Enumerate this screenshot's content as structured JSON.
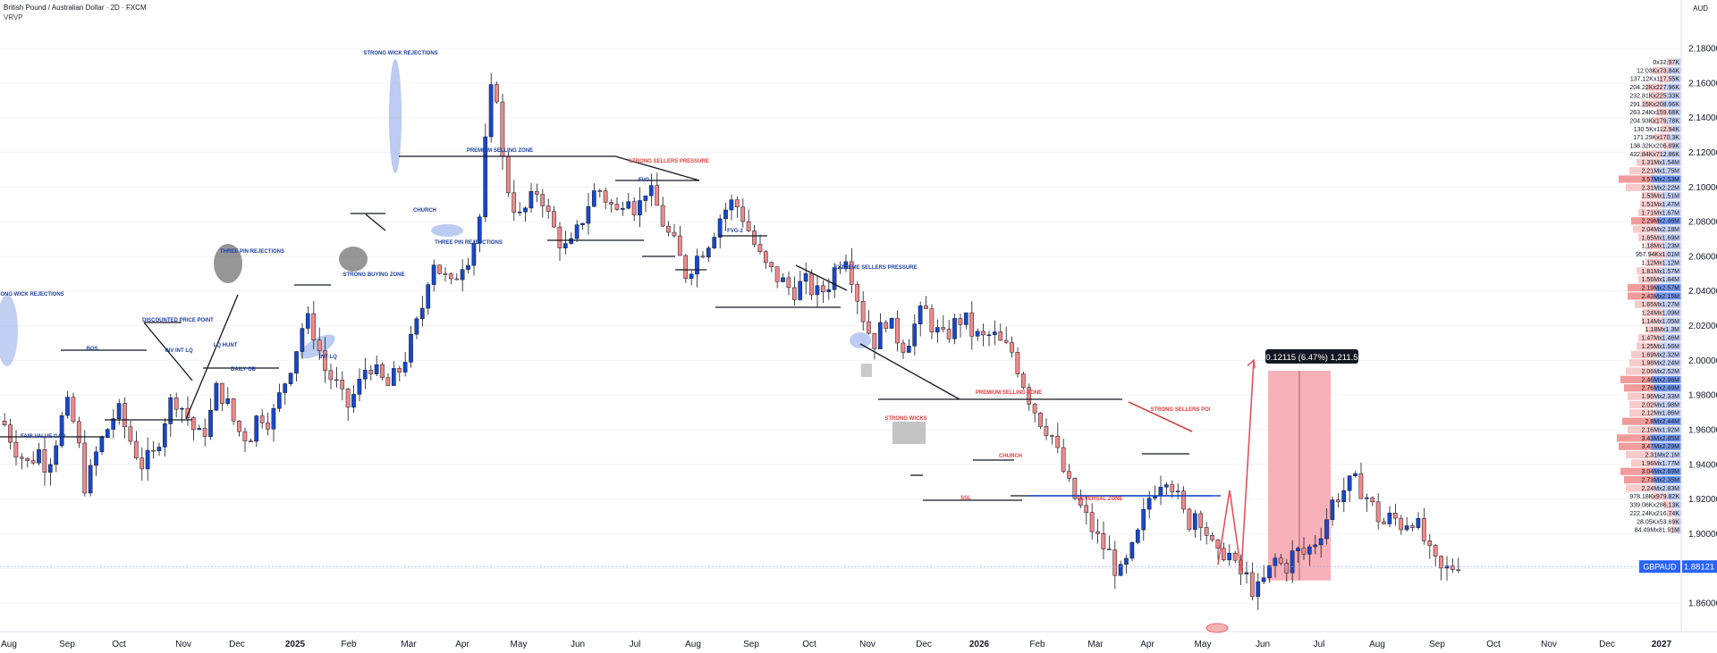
{
  "header": {
    "title": "British Pound / Australian Dollar · 2D · FXCM",
    "indicator": "VRVP",
    "currency": "AUD"
  },
  "price_badge": {
    "symbol": "GBPAUD",
    "price": "1.88121"
  },
  "measure_label": "0.12115 (6.47%) 1,211.5",
  "chart_data": {
    "type": "candlestick",
    "symbol": "GBPAUD",
    "timeframe": "2D",
    "ylim": [
      1.845,
      2.195
    ],
    "y_ticks": [
      "2.18000",
      "2.16000",
      "2.14000",
      "2.12000",
      "2.10000",
      "2.08000",
      "2.06000",
      "2.04000",
      "2.02000",
      "2.00000",
      "1.98000",
      "1.96000",
      "1.94000",
      "1.92000",
      "1.90000",
      "1.88000",
      "1.86000"
    ],
    "x_ticks": [
      "Aug",
      "Sep",
      "Oct",
      "Nov",
      "Dec",
      "2025",
      "Feb",
      "Mar",
      "Apr",
      "May",
      "Jun",
      "Jul",
      "Aug",
      "Sep",
      "Oct",
      "Nov",
      "Dec",
      "2026",
      "Feb",
      "Mar",
      "Apr",
      "May",
      "Jun",
      "Jul",
      "Aug",
      "Sep",
      "Oct",
      "Nov",
      "Dec",
      "2027"
    ],
    "bold_x_ticks": [
      "2025",
      "2026",
      "2027"
    ],
    "price_path": [
      [
        0,
        1.965
      ],
      [
        5,
        1.95
      ],
      [
        10,
        1.94
      ],
      [
        15,
        1.948
      ],
      [
        18,
        1.938
      ],
      [
        22,
        1.955
      ],
      [
        26,
        1.975
      ],
      [
        30,
        1.96
      ],
      [
        34,
        1.925
      ],
      [
        38,
        1.945
      ],
      [
        42,
        1.958
      ],
      [
        47,
        1.972
      ],
      [
        52,
        1.955
      ],
      [
        57,
        1.94
      ],
      [
        62,
        1.945
      ],
      [
        66,
        1.965
      ],
      [
        70,
        1.98
      ],
      [
        75,
        1.97
      ],
      [
        80,
        1.955
      ],
      [
        84,
        1.962
      ],
      [
        88,
        1.985
      ],
      [
        92,
        1.975
      ],
      [
        96,
        1.96
      ],
      [
        101,
        1.955
      ],
      [
        105,
        1.97
      ],
      [
        110,
        1.965
      ],
      [
        115,
        1.985
      ],
      [
        120,
        2.005
      ],
      [
        124,
        2.025
      ],
      [
        128,
        2.015
      ],
      [
        132,
        1.995
      ],
      [
        137,
        1.985
      ],
      [
        141,
        1.972
      ],
      [
        146,
        1.985
      ],
      [
        150,
        2.0
      ],
      [
        154,
        1.99
      ],
      [
        158,
        1.985
      ],
      [
        163,
        1.995
      ],
      [
        168,
        2.012
      ],
      [
        172,
        2.03
      ],
      [
        176,
        2.06
      ],
      [
        180,
        2.05
      ],
      [
        184,
        2.042
      ],
      [
        188,
        2.056
      ],
      [
        192,
        2.062
      ],
      [
        196,
        2.085
      ],
      [
        199,
        2.145
      ],
      [
        202,
        2.165
      ],
      [
        205,
        2.115
      ],
      [
        208,
        2.095
      ],
      [
        212,
        2.082
      ],
      [
        216,
        2.09
      ],
      [
        220,
        2.1
      ],
      [
        224,
        2.082
      ],
      [
        228,
        2.07
      ],
      [
        232,
        2.062
      ],
      [
        236,
        2.075
      ],
      [
        240,
        2.09
      ],
      [
        244,
        2.1
      ],
      [
        248,
        2.092
      ],
      [
        252,
        2.085
      ],
      [
        256,
        2.1
      ],
      [
        260,
        2.085
      ],
      [
        264,
        2.1
      ],
      [
        268,
        2.09
      ],
      [
        272,
        2.075
      ],
      [
        276,
        2.065
      ],
      [
        280,
        2.05
      ],
      [
        285,
        2.06
      ],
      [
        290,
        2.07
      ],
      [
        295,
        2.085
      ],
      [
        300,
        2.092
      ],
      [
        304,
        2.082
      ],
      [
        308,
        2.068
      ],
      [
        312,
        2.055
      ],
      [
        316,
        2.05
      ],
      [
        320,
        2.045
      ],
      [
        324,
        2.04
      ],
      [
        329,
        2.045
      ],
      [
        334,
        2.038
      ],
      [
        338,
        2.042
      ],
      [
        342,
        2.055
      ],
      [
        346,
        2.062
      ],
      [
        350,
        2.04
      ],
      [
        354,
        2.02
      ],
      [
        358,
        2.01
      ],
      [
        362,
        2.025
      ],
      [
        366,
        2.015
      ],
      [
        370,
        2.008
      ],
      [
        374,
        2.02
      ],
      [
        378,
        2.03
      ],
      [
        382,
        2.018
      ],
      [
        386,
        2.012
      ],
      [
        390,
        2.02
      ],
      [
        394,
        2.025
      ],
      [
        398,
        2.015
      ],
      [
        402,
        2.012
      ],
      [
        406,
        2.015
      ],
      [
        410,
        2.008
      ],
      [
        414,
        2.005
      ],
      [
        418,
        1.99
      ],
      [
        422,
        1.975
      ],
      [
        426,
        1.965
      ],
      [
        430,
        1.958
      ],
      [
        434,
        1.94
      ],
      [
        438,
        1.925
      ],
      [
        442,
        1.915
      ],
      [
        446,
        1.905
      ],
      [
        450,
        1.895
      ],
      [
        454,
        1.888
      ],
      [
        458,
        1.875
      ],
      [
        462,
        1.885
      ],
      [
        466,
        1.9
      ],
      [
        470,
        1.92
      ],
      [
        474,
        1.93
      ],
      [
        478,
        1.935
      ],
      [
        482,
        1.92
      ],
      [
        486,
        1.905
      ],
      [
        490,
        1.915
      ],
      [
        494,
        1.9
      ],
      [
        498,
        1.885
      ],
      [
        502,
        1.892
      ],
      [
        506,
        1.878
      ],
      [
        510,
        1.875
      ],
      [
        514,
        1.865
      ],
      [
        518,
        1.874
      ],
      [
        522,
        1.885
      ],
      [
        526,
        1.88
      ],
      [
        530,
        1.89
      ],
      [
        534,
        1.888
      ],
      [
        538,
        1.895
      ],
      [
        542,
        1.905
      ],
      [
        546,
        1.92
      ],
      [
        550,
        1.925
      ],
      [
        554,
        1.93
      ],
      [
        558,
        1.925
      ],
      [
        562,
        1.915
      ],
      [
        566,
        1.905
      ],
      [
        570,
        1.91
      ],
      [
        574,
        1.905
      ],
      [
        578,
        1.91
      ],
      [
        582,
        1.9
      ],
      [
        586,
        1.885
      ],
      [
        590,
        1.878
      ],
      [
        594,
        1.88
      ],
      [
        598,
        1.885
      ]
    ],
    "price_path_x_range": [
      0,
      598
    ],
    "projection": {
      "from": 1.882,
      "peak": 1.925,
      "target": 2.0
    },
    "target_zone": {
      "top": 1.994,
      "bottom": 1.873
    },
    "current_line": 1.881,
    "annotations": [
      {
        "label": "STRONG WICK REJECTIONS",
        "color": "#1c3fa3"
      },
      {
        "label": "FAIR VALUE GAP",
        "color": "#1c3fa3"
      },
      {
        "label": "BOS",
        "color": "#1c3fa3"
      },
      {
        "label": "DISCOUNTED PRICE POINT",
        "color": "#1c3fa3"
      },
      {
        "label": "INV INT LQ",
        "color": "#1c3fa3"
      },
      {
        "label": "LQ HUNT",
        "color": "#1c3fa3"
      },
      {
        "label": "DAILY OB",
        "color": "#1c3fa3"
      },
      {
        "label": "THREE PIN REJECTIONS",
        "color": "#1c3fa3"
      },
      {
        "label": "INT LQ",
        "color": "#1c3fa3"
      },
      {
        "label": "STRONG BUYING ZONE",
        "color": "#1c3fa3"
      },
      {
        "label": "PREMIUM SELLING ZONE",
        "color": "#1c3fa3"
      },
      {
        "label": "CHURCH",
        "color": "#1c3fa3"
      },
      {
        "label": "THREE PIN REJEFCTIONS",
        "color": "#1c3fa3"
      },
      {
        "label": "STRONG SELLERS PRESSURE",
        "color": "#e23b3b"
      },
      {
        "label": "FVG",
        "color": "#1c3fa3"
      },
      {
        "label": "FVG-2",
        "color": "#1c3fa3"
      },
      {
        "label": "EXTREME SELLERS PRESSURE",
        "color": "#1c3fa3"
      },
      {
        "label": "PREMIUM SELLING ZONE",
        "color": "#e23b3b"
      },
      {
        "label": "STRONG WICKS",
        "color": "#e23b3b"
      },
      {
        "label": "SSL",
        "color": "#e23b3b"
      },
      {
        "label": "CHURCH",
        "color": "#e23b3b"
      },
      {
        "label": "REVERSAL ZONE",
        "color": "#e23b3b"
      },
      {
        "label": "STRONG SELLERS POI",
        "color": "#e23b3b"
      }
    ],
    "volume_profile": [
      {
        "label": "0x32.97K"
      },
      {
        "label": "12.03Kx73.84K"
      },
      {
        "label": "137.12Kx117.55K"
      },
      {
        "label": "204.22Kx227.96K"
      },
      {
        "label": "232.81Kx225.33K"
      },
      {
        "label": "291.15Kx208.96K"
      },
      {
        "label": "263.24Kx159.68K"
      },
      {
        "label": "204.93Kx179.78K"
      },
      {
        "label": "130.5Kx112.94K"
      },
      {
        "label": "171.29Kx170.3K"
      },
      {
        "label": "138.32Kx206.89K"
      },
      {
        "label": "432.84Kx712.86K"
      },
      {
        "label": "1.31Mx1.54M"
      },
      {
        "label": "2.21Mx1.75M"
      },
      {
        "label": "3.57Mx2.53M"
      },
      {
        "label": "2.31Mx2.22M"
      },
      {
        "label": "1.53Mx1.51M"
      },
      {
        "label": "1.51Mx1.47M"
      },
      {
        "label": "1.71Mx1.67M"
      },
      {
        "label": "2.29Mx2.46M"
      },
      {
        "label": "2.04Mx2.18M"
      },
      {
        "label": "1.65Mx1.69M"
      },
      {
        "label": "1.18Mx1.23M"
      },
      {
        "label": "957.94Kx1.01M"
      },
      {
        "label": "1.12Mx1.12M"
      },
      {
        "label": "1.81Mx1.57M"
      },
      {
        "label": "1.56Mx1.84M"
      },
      {
        "label": "2.19Mx2.57M"
      },
      {
        "label": "2.43Mx2.15M"
      },
      {
        "label": "1.65Mx1.27M"
      },
      {
        "label": "1.24Mx1.09M"
      },
      {
        "label": "1.14Mx1.05M"
      },
      {
        "label": "1.18Mx1.3M"
      },
      {
        "label": "1.47Mx1.46M"
      },
      {
        "label": "1.25Mx1.56M"
      },
      {
        "label": "1.69Mx2.32M"
      },
      {
        "label": "1.98Mx2.24M"
      },
      {
        "label": "2.06Mx2.52M"
      },
      {
        "label": "2.46Mx2.96M"
      },
      {
        "label": "2.76Mx2.49M"
      },
      {
        "label": "1.96Mx2.33M"
      },
      {
        "label": "2.02Mx1.98M"
      },
      {
        "label": "2.12Mx1.86M"
      },
      {
        "label": "2.8Mx2.44M"
      },
      {
        "label": "2.16Mx1.92M"
      },
      {
        "label": "3.43Mx2.85M"
      },
      {
        "label": "3.47Mx2.29M"
      },
      {
        "label": "2.31Mx2.1M"
      },
      {
        "label": "1.96Mx1.77M"
      },
      {
        "label": "3.04Mx2.69M"
      },
      {
        "label": "2.73Mx2.35M"
      },
      {
        "label": "2.24Mx2.83M"
      },
      {
        "label": "978.18Kx979.82K"
      },
      {
        "label": "339.06Kx286.13K"
      },
      {
        "label": "222.24Kx216.74K"
      },
      {
        "label": "28.05Kx53.69K"
      },
      {
        "label": "84.49Mx81.91M"
      }
    ]
  }
}
